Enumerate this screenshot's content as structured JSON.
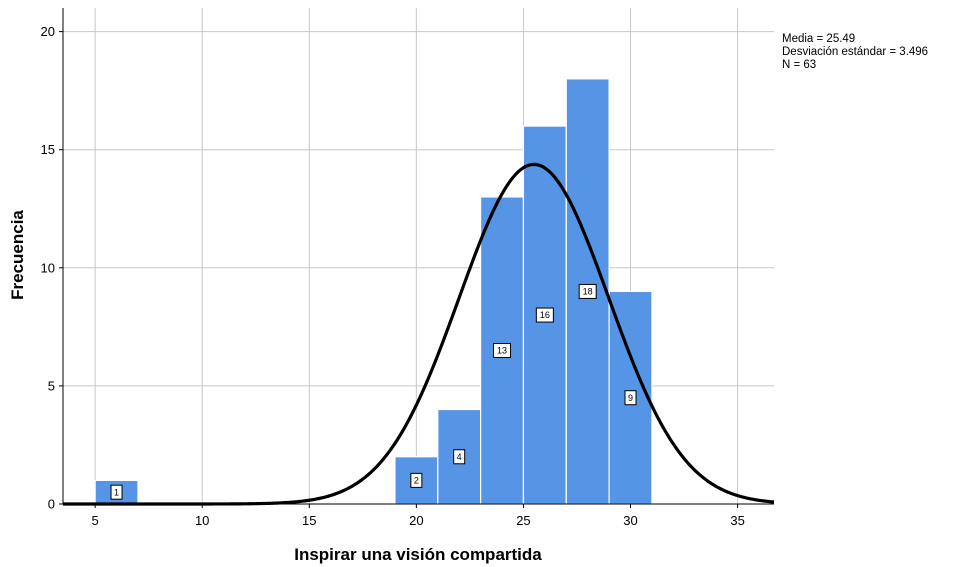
{
  "chart_data": {
    "type": "bar",
    "title": "",
    "xlabel": "Inspirar una visión compartida",
    "ylabel": "Frecuencia",
    "xlim": [
      3.5,
      36.7
    ],
    "ylim": [
      0,
      21
    ],
    "x_ticks": [
      5,
      10,
      15,
      20,
      25,
      30,
      35
    ],
    "y_ticks": [
      0,
      5,
      10,
      15,
      20
    ],
    "bin_width": 2,
    "bins": [
      {
        "start": 5,
        "end": 7,
        "count": 1,
        "label": "1"
      },
      {
        "start": 19,
        "end": 21,
        "count": 2,
        "label": "2"
      },
      {
        "start": 21,
        "end": 23,
        "count": 4,
        "label": "4"
      },
      {
        "start": 23,
        "end": 25,
        "count": 13,
        "label": "13"
      },
      {
        "start": 25,
        "end": 27,
        "count": 16,
        "label": "16"
      },
      {
        "start": 27,
        "end": 29,
        "count": 18,
        "label": "18"
      },
      {
        "start": 29,
        "end": 31,
        "count": 9,
        "label": "9"
      }
    ],
    "normal_curve": {
      "mean": 25.49,
      "sd": 3.496,
      "n": 63
    },
    "stats_lines": [
      "Media = 25.49",
      "Desviación estándar = 3.496",
      "N = 63"
    ],
    "grid": true,
    "colors": {
      "bar": "#5694e6",
      "curve": "#000000",
      "grid": "#c8c8c8"
    }
  }
}
